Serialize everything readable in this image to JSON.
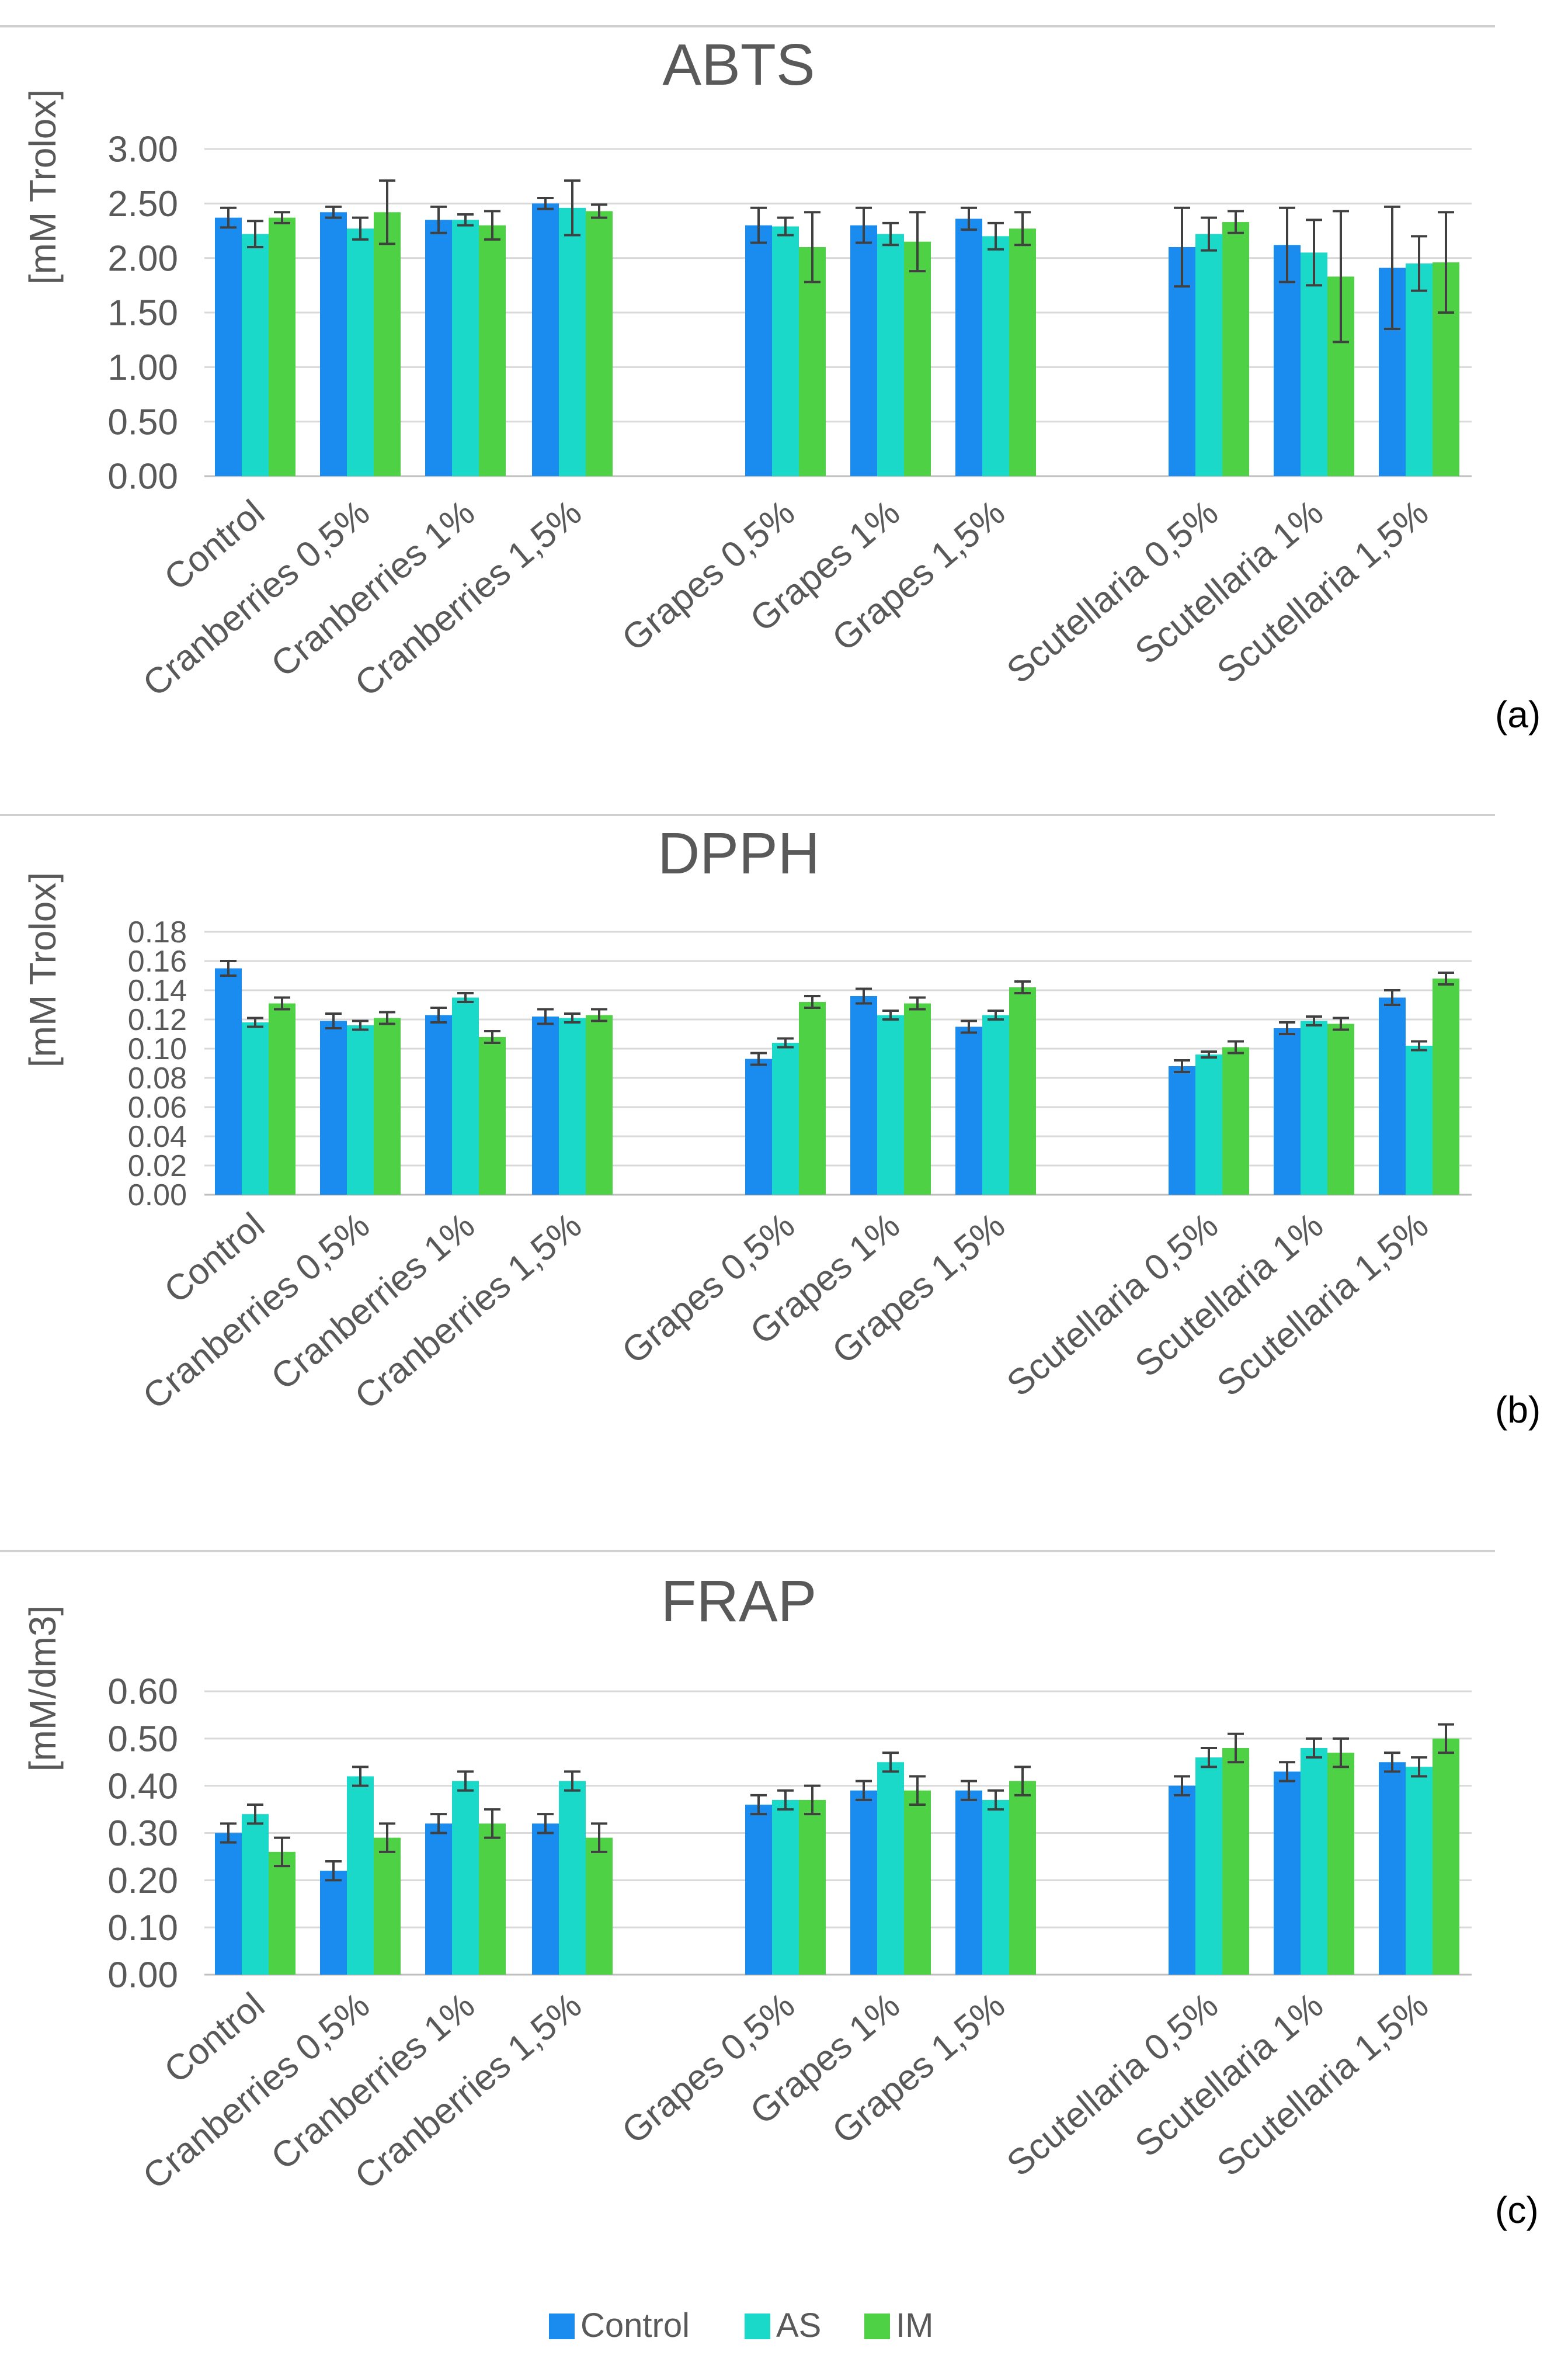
{
  "colors": {
    "Control": "#1a8cf0",
    "AS": "#1ad9c8",
    "IM": "#4fd146",
    "grid": "#d9d9d9",
    "error": "#404040"
  },
  "legend": [
    "Control",
    "AS",
    "IM"
  ],
  "chart_data": [
    {
      "type": "bar",
      "title": "ABTS",
      "panel_label": "(a)",
      "ylabel": "[mM Trolox]",
      "ylim": [
        0,
        3
      ],
      "ytick_labels": [
        "0.00",
        "0.50",
        "1.00",
        "1.50",
        "2.00",
        "2.50",
        "3.00"
      ],
      "legend": "bottom",
      "grid": true,
      "categories": [
        "Control",
        "Cranberries 0,5%",
        "Cranberries 1%",
        "Cranberries 1,5%",
        "Grapes 0,5%",
        "Grapes 1%",
        "Grapes 1,5%",
        "Scutellaria 0,5%",
        "Scutellaria 1%",
        "Scutellaria 1,5%"
      ],
      "series": [
        {
          "name": "Control",
          "values": [
            2.37,
            2.42,
            2.35,
            2.5,
            2.3,
            2.3,
            2.36,
            2.1,
            2.12,
            1.91
          ],
          "errors": [
            0.09,
            0.05,
            0.12,
            0.05,
            0.16,
            0.16,
            0.1,
            0.36,
            0.34,
            0.56
          ]
        },
        {
          "name": "AS",
          "values": [
            2.22,
            2.27,
            2.35,
            2.46,
            2.29,
            2.22,
            2.2,
            2.22,
            2.05,
            1.95
          ],
          "errors": [
            0.12,
            0.1,
            0.05,
            0.25,
            0.08,
            0.1,
            0.12,
            0.15,
            0.3,
            0.25
          ]
        },
        {
          "name": "IM",
          "values": [
            2.37,
            2.42,
            2.3,
            2.43,
            2.1,
            2.15,
            2.27,
            2.33,
            1.83,
            1.96
          ],
          "errors": [
            0.05,
            0.29,
            0.13,
            0.06,
            0.32,
            0.27,
            0.15,
            0.1,
            0.6,
            0.46
          ]
        }
      ]
    },
    {
      "type": "bar",
      "title": "DPPH",
      "panel_label": "(b)",
      "ylabel": "[mM Trolox]",
      "ylim": [
        0,
        0.18
      ],
      "ytick_labels": [
        "0.00",
        "0.02",
        "0.04",
        "0.06",
        "0.08",
        "0.10",
        "0.12",
        "0.14",
        "0.16",
        "0.18"
      ],
      "legend": "bottom",
      "grid": true,
      "categories": [
        "Control",
        "Cranberries 0,5%",
        "Cranberries 1%",
        "Cranberries 1,5%",
        "Grapes 0,5%",
        "Grapes 1%",
        "Grapes 1,5%",
        "Scutellaria 0,5%",
        "Scutellaria 1%",
        "Scutellaria 1,5%"
      ],
      "series": [
        {
          "name": "Control",
          "values": [
            0.155,
            0.119,
            0.123,
            0.122,
            0.093,
            0.136,
            0.115,
            0.088,
            0.114,
            0.135
          ],
          "errors": [
            0.005,
            0.005,
            0.005,
            0.005,
            0.004,
            0.005,
            0.004,
            0.004,
            0.004,
            0.005
          ]
        },
        {
          "name": "AS",
          "values": [
            0.118,
            0.116,
            0.135,
            0.121,
            0.104,
            0.123,
            0.123,
            0.096,
            0.119,
            0.102
          ],
          "errors": [
            0.003,
            0.003,
            0.003,
            0.003,
            0.003,
            0.003,
            0.003,
            0.002,
            0.003,
            0.003
          ]
        },
        {
          "name": "IM",
          "values": [
            0.131,
            0.121,
            0.108,
            0.123,
            0.132,
            0.131,
            0.142,
            0.101,
            0.117,
            0.148
          ],
          "errors": [
            0.004,
            0.004,
            0.004,
            0.004,
            0.004,
            0.004,
            0.004,
            0.004,
            0.004,
            0.004
          ]
        }
      ]
    },
    {
      "type": "bar",
      "title": "FRAP",
      "panel_label": "(c)",
      "ylabel": "[mM/dm3]",
      "ylim": [
        0,
        0.6
      ],
      "ytick_labels": [
        "0.00",
        "0.10",
        "0.20",
        "0.30",
        "0.40",
        "0.50",
        "0.60"
      ],
      "legend": "bottom",
      "grid": true,
      "categories": [
        "Control",
        "Cranberries 0,5%",
        "Cranberries 1%",
        "Cranberries 1,5%",
        "Grapes 0,5%",
        "Grapes 1%",
        "Grapes 1,5%",
        "Scutellaria 0,5%",
        "Scutellaria 1%",
        "Scutellaria 1,5%"
      ],
      "series": [
        {
          "name": "Control",
          "values": [
            0.3,
            0.22,
            0.32,
            0.32,
            0.36,
            0.39,
            0.39,
            0.4,
            0.43,
            0.45
          ],
          "errors": [
            0.02,
            0.02,
            0.02,
            0.02,
            0.02,
            0.02,
            0.02,
            0.02,
            0.02,
            0.02
          ]
        },
        {
          "name": "AS",
          "values": [
            0.34,
            0.42,
            0.41,
            0.41,
            0.37,
            0.45,
            0.37,
            0.46,
            0.48,
            0.44
          ],
          "errors": [
            0.02,
            0.02,
            0.02,
            0.02,
            0.02,
            0.02,
            0.02,
            0.02,
            0.02,
            0.02
          ]
        },
        {
          "name": "IM",
          "values": [
            0.26,
            0.29,
            0.32,
            0.29,
            0.37,
            0.39,
            0.41,
            0.48,
            0.47,
            0.5
          ],
          "errors": [
            0.03,
            0.03,
            0.03,
            0.03,
            0.03,
            0.03,
            0.03,
            0.03,
            0.03,
            0.03
          ]
        }
      ]
    }
  ]
}
